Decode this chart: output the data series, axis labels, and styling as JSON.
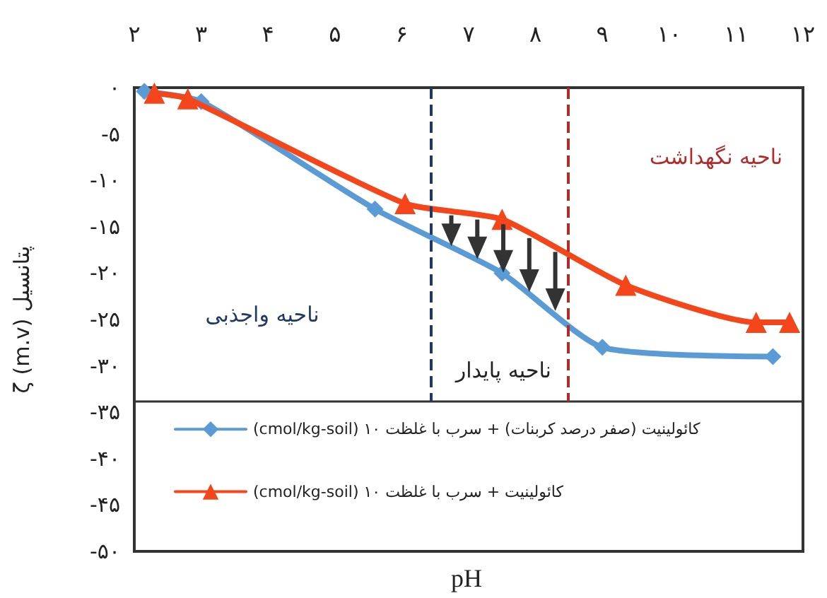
{
  "chart_data": {
    "type": "line",
    "xlabel": "pH",
    "ylabel": "پتانسیل ζ (m.v)",
    "xlim": [
      2,
      12
    ],
    "xticks": [
      {
        "value": 2,
        "label": "۲"
      },
      {
        "value": 3,
        "label": "۳"
      },
      {
        "value": 4,
        "label": "۴"
      },
      {
        "value": 5,
        "label": "۵"
      },
      {
        "value": 6,
        "label": "۶"
      },
      {
        "value": 7,
        "label": "۷"
      },
      {
        "value": 8,
        "label": "۸"
      },
      {
        "value": 9,
        "label": "۹"
      },
      {
        "value": 10,
        "label": "۱۰"
      },
      {
        "value": 11,
        "label": "۱۱"
      },
      {
        "value": 12,
        "label": "۱۲"
      }
    ],
    "ylim": [
      -50,
      0
    ],
    "yticks": [
      {
        "value": 0,
        "label": "۰"
      },
      {
        "value": -5,
        "label": "-۵"
      },
      {
        "value": -10,
        "label": "-۱۰"
      },
      {
        "value": -15,
        "label": "-۱۵"
      },
      {
        "value": -20,
        "label": "-۲۰"
      },
      {
        "value": -25,
        "label": "-۲۵"
      },
      {
        "value": -30,
        "label": "-۳۰"
      },
      {
        "value": -35,
        "label": "-۳۵"
      },
      {
        "value": -40,
        "label": "-۴۰"
      },
      {
        "value": -45,
        "label": "-۴۵"
      },
      {
        "value": -50,
        "label": "-۵۰"
      }
    ],
    "series": [
      {
        "name": "کائولینیت (صفر درصد کربنات) + سرب با غلظت ۱۰ (cmol/kg-soil)",
        "color": "#5b9bd5",
        "marker": "diamond",
        "x": [
          2.15,
          3.0,
          5.6,
          7.5,
          9.0,
          11.55
        ],
        "values": [
          -0.4,
          -1.5,
          -13.1,
          -20.0,
          -28.0,
          -29.0
        ]
      },
      {
        "name": "کائولینیت + سرب با غلظت ۱۰ (cmol/kg-soil)",
        "color": "#f4461a",
        "marker": "triangle",
        "x": [
          2.3,
          2.8,
          6.05,
          7.5,
          9.35,
          11.3,
          11.8
        ],
        "values": [
          -0.6,
          -1.2,
          -12.5,
          -14.2,
          -21.3,
          -25.3,
          -25.3
        ]
      }
    ],
    "ref_lines": [
      {
        "axis": "x",
        "value": 6.43,
        "color": "#1f3864",
        "line_style": "dashed"
      },
      {
        "axis": "x",
        "value": 8.49,
        "color": "#b22a2a",
        "line_style": "dashed"
      }
    ],
    "annotations": [
      "ناحیه واجذبی",
      "ناحیه پایدار",
      "ناحیه نگهداشت"
    ],
    "legend": "bottom",
    "grid": false
  }
}
